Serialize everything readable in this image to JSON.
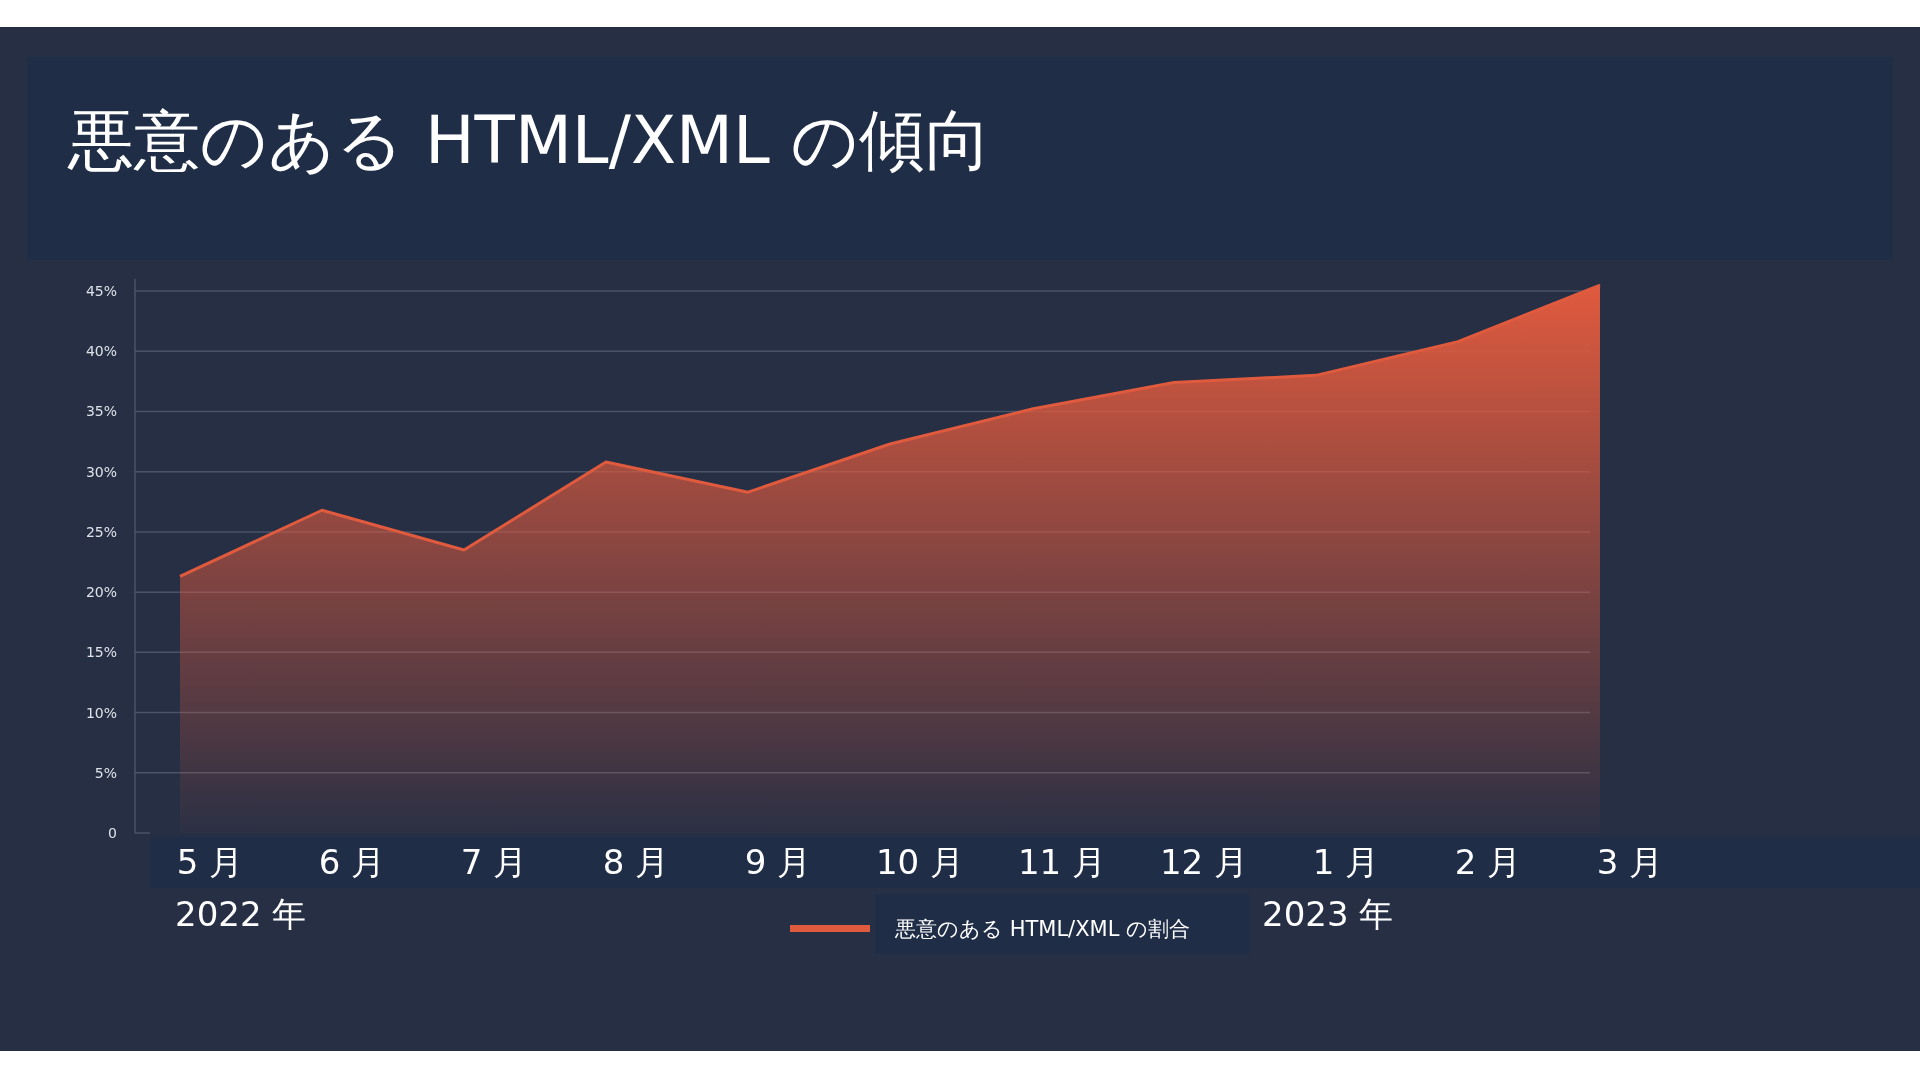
{
  "chart_data": {
    "type": "area",
    "title": "悪意のある HTML/XML の傾向",
    "categories": [
      "5 月",
      "6 月",
      "7 月",
      "8 月",
      "9 月",
      "10 月",
      "11 月",
      "12 月",
      "1 月",
      "2 月",
      "3 月"
    ],
    "series": [
      {
        "name": "悪意のある HTML/XML の割合",
        "color": "#e05a3e",
        "values": [
          21.3,
          26.8,
          23.5,
          30.8,
          28.3,
          32.3,
          35.2,
          37.4,
          38.0,
          40.8,
          45.5
        ]
      }
    ],
    "ylim": [
      0,
      46
    ],
    "yticks": [
      {
        "value": 0,
        "label": "0"
      },
      {
        "value": 5,
        "label": "5%"
      },
      {
        "value": 10,
        "label": "10%"
      },
      {
        "value": 15,
        "label": "15%"
      },
      {
        "value": 20,
        "label": "20%"
      },
      {
        "value": 25,
        "label": "25%"
      },
      {
        "value": 30,
        "label": "30%"
      },
      {
        "value": 35,
        "label": "35%"
      },
      {
        "value": 40,
        "label": "40%"
      },
      {
        "value": 45,
        "label": "45%"
      }
    ],
    "grid": "y",
    "legend": "bottom",
    "annotations": [
      "2022 年",
      "2023 年"
    ]
  }
}
